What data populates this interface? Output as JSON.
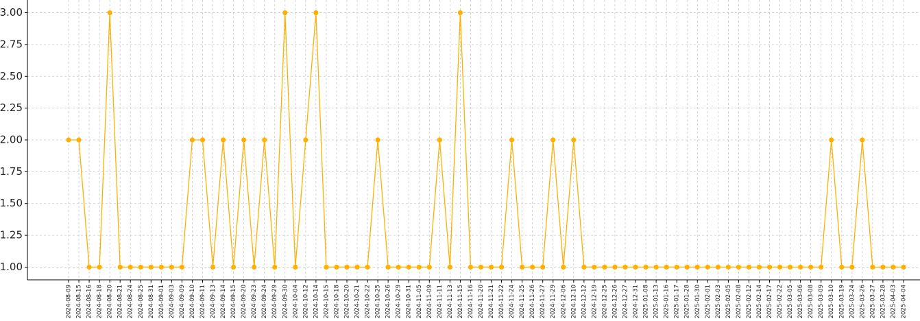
{
  "chart_data": {
    "type": "line",
    "categories": [
      "2024-08-09",
      "2024-08-15",
      "2024-08-16",
      "2024-08-18",
      "2024-08-20",
      "2024-08-21",
      "2024-08-24",
      "2024-08-25",
      "2024-08-31",
      "2024-09-01",
      "2024-09-03",
      "2024-09-09",
      "2024-09-10",
      "2024-09-11",
      "2024-09-13",
      "2024-09-14",
      "2024-09-15",
      "2024-09-20",
      "2024-09-23",
      "2024-09-24",
      "2024-09-29",
      "2024-09-30",
      "2024-10-04",
      "2024-10-12",
      "2024-10-14",
      "2024-10-15",
      "2024-10-18",
      "2024-10-20",
      "2024-10-21",
      "2024-10-22",
      "2024-10-25",
      "2024-10-26",
      "2024-10-29",
      "2024-10-31",
      "2024-11-05",
      "2024-11-09",
      "2024-11-11",
      "2024-11-13",
      "2024-11-15",
      "2024-11-16",
      "2024-11-20",
      "2024-11-21",
      "2024-11-22",
      "2024-11-24",
      "2024-11-25",
      "2024-11-26",
      "2024-11-27",
      "2024-11-29",
      "2024-12-06",
      "2024-12-10",
      "2024-12-12",
      "2024-12-19",
      "2024-12-25",
      "2024-12-26",
      "2024-12-27",
      "2024-12-31",
      "2025-01-08",
      "2025-01-13",
      "2025-01-16",
      "2025-01-17",
      "2025-01-28",
      "2025-01-30",
      "2025-02-01",
      "2025-02-03",
      "2025-02-05",
      "2025-02-08",
      "2025-02-12",
      "2025-02-14",
      "2025-02-17",
      "2025-02-22",
      "2025-03-05",
      "2025-03-06",
      "2025-03-08",
      "2025-03-09",
      "2025-03-10",
      "2025-03-19",
      "2025-03-24",
      "2025-03-26",
      "2025-03-27",
      "2025-03-28",
      "2025-04-03",
      "2025-04-04"
    ],
    "values": [
      2,
      2,
      1,
      1,
      3,
      1,
      1,
      1,
      1,
      1,
      1,
      1,
      2,
      2,
      1,
      2,
      1,
      2,
      1,
      2,
      1,
      3,
      1,
      2,
      3,
      1,
      1,
      1,
      1,
      1,
      2,
      1,
      1,
      1,
      1,
      1,
      2,
      1,
      3,
      1,
      1,
      1,
      1,
      2,
      1,
      1,
      1,
      2,
      1,
      2,
      1,
      1,
      1,
      1,
      1,
      1,
      1,
      1,
      1,
      1,
      1,
      1,
      1,
      1,
      1,
      1,
      1,
      1,
      1,
      1,
      1,
      1,
      1,
      1,
      2,
      1,
      1,
      2,
      1,
      1,
      1,
      1
    ],
    "color": "#ffb000",
    "ylim": [
      0.9,
      3.1
    ],
    "yticks": [
      {
        "value": 1,
        "label": "1.00"
      },
      {
        "value": 1.25,
        "label": "1.25"
      },
      {
        "value": 1.5,
        "label": "1.50"
      },
      {
        "value": 1.75,
        "label": "1.75"
      },
      {
        "value": 2,
        "label": "2.00"
      },
      {
        "value": 2.25,
        "label": "2.25"
      },
      {
        "value": 2.5,
        "label": "2.50"
      },
      {
        "value": 2.75,
        "label": "2.75"
      },
      {
        "value": 3,
        "label": "3.00"
      }
    ],
    "grid": true
  }
}
